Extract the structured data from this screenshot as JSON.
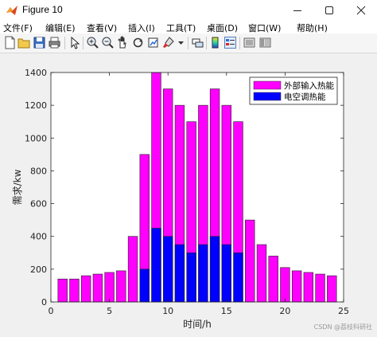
{
  "window": {
    "title": "Figure 10",
    "minimize_icon": "minimize-icon",
    "maximize_icon": "maximize-icon",
    "close_icon": "close-icon"
  },
  "menu": {
    "items": [
      {
        "label": "文件(F)"
      },
      {
        "label": "编辑(E)"
      },
      {
        "label": "查看(V)"
      },
      {
        "label": "插入(I)"
      },
      {
        "label": "工具(T)"
      },
      {
        "label": "桌面(D)"
      },
      {
        "label": "窗口(W)"
      },
      {
        "label": "帮助(H)"
      }
    ]
  },
  "toolbar": {
    "icons": [
      "new-figure-icon",
      "open-file-icon",
      "save-icon",
      "print-icon",
      "pointer-icon",
      "zoom-in-icon",
      "zoom-out-icon",
      "pan-icon",
      "rotate-icon",
      "data-cursor-icon",
      "brush-icon",
      "link-icon",
      "colorbar-icon",
      "legend-icon",
      "hide-plot-tools-icon",
      "show-plot-tools-icon"
    ]
  },
  "chart_data": {
    "type": "bar",
    "stacked": false,
    "x": [
      1,
      2,
      3,
      4,
      5,
      6,
      7,
      8,
      9,
      10,
      11,
      12,
      13,
      14,
      15,
      16,
      17,
      18,
      19,
      20,
      21,
      22,
      23,
      24
    ],
    "series": [
      {
        "name": "外部输入热能",
        "color": "#ff00ff",
        "values": [
          140,
          140,
          160,
          170,
          180,
          190,
          400,
          900,
          1400,
          1300,
          1200,
          1100,
          1200,
          1300,
          1200,
          1100,
          500,
          350,
          280,
          210,
          190,
          180,
          170,
          160
        ]
      },
      {
        "name": "电空调热能",
        "color": "#0000ff",
        "values": [
          0,
          0,
          0,
          0,
          0,
          0,
          0,
          200,
          450,
          400,
          350,
          300,
          350,
          400,
          350,
          300,
          0,
          0,
          0,
          0,
          0,
          0,
          0,
          0
        ]
      }
    ],
    "xlabel": "时间/h",
    "ylabel": "需求/kw",
    "xlim": [
      0,
      25
    ],
    "ylim": [
      0,
      1400
    ],
    "xticks": [
      0,
      5,
      10,
      15,
      20,
      25
    ],
    "yticks": [
      0,
      200,
      400,
      600,
      800,
      1000,
      1200,
      1400
    ],
    "grid": false,
    "legend_position": "top-right"
  },
  "watermark": "CSDN @荔枝科研社"
}
